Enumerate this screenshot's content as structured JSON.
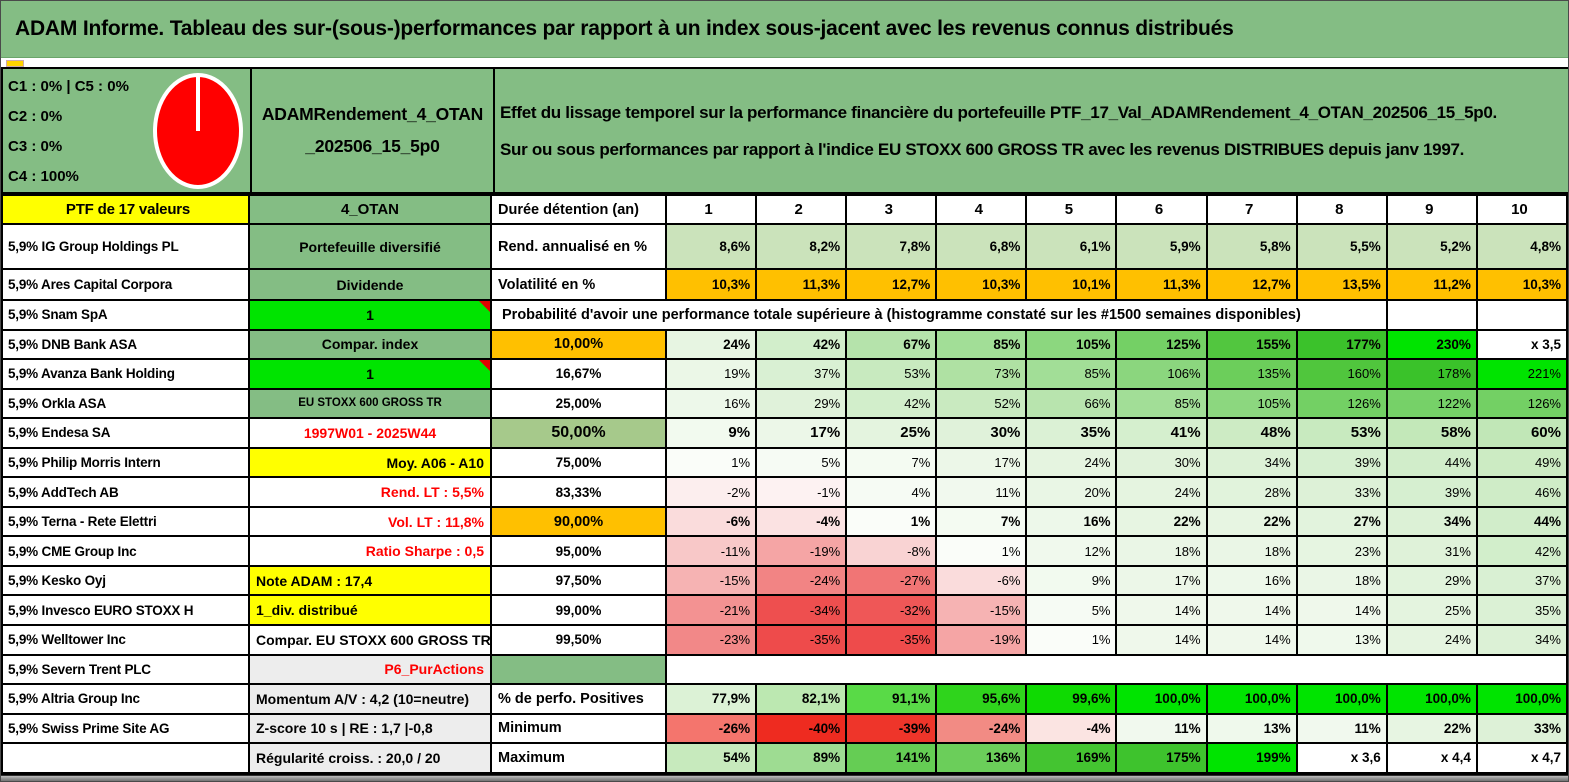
{
  "title": "ADAM Informe. Tableau des sur-(sous-)performances par rapport à un index sous-jacent avec les revenus connus distribués",
  "theme": {
    "banner_green": "#84BD84",
    "bright_green": "#00E400",
    "orange": "#FFC000",
    "yellow": "#FFFF00",
    "sage_green": "#A6C98B",
    "negative_red": "#EE2B20",
    "pie_red": "#FF0000",
    "gray_cell": "#EDEDED"
  },
  "info": {
    "classes": [
      "C1 : 0% | C5 : 0%",
      "C2 : 0%",
      "C3 : 0%",
      "C4 : 100%"
    ],
    "pie": {
      "color": "#FF0000",
      "meaning": "allocation 100% classe C4"
    },
    "name_line1": "ADAMRendement_4_OTAN",
    "name_line2": "_202506_15_5p0",
    "desc_line1": "Effet du lissage temporel sur la performance financière du portefeuille PTF_17_Val_ADAMRendement_4_OTAN_202506_15_5p0.",
    "desc_line2": "Sur ou sous performances par rapport à l'indice EU STOXX 600 GROSS TR avec les revenus DISTRIBUES depuis janv 1997."
  },
  "table": {
    "header": {
      "left": "PTF de 17 valeurs",
      "mid": "4_OTAN",
      "label": "Durée détention (an)"
    },
    "years": [
      "1",
      "2",
      "3",
      "4",
      "5",
      "6",
      "7",
      "8",
      "9",
      "10"
    ],
    "rows": [
      {
        "name": "rend-annualise",
        "left": "5,9% IG Group Holdings PL",
        "mid": {
          "text": "Portefeuille diversifié",
          "cls": "bgg ac"
        },
        "label": {
          "text": "Rend. annualisé en %",
          "cls": "bgw al fs145"
        },
        "vcls": "vb",
        "values": [
          "8,6%",
          "8,2%",
          "7,8%",
          "6,8%",
          "6,1%",
          "5,9%",
          "5,8%",
          "5,5%",
          "5,2%",
          "4,8%"
        ],
        "bgs": [
          "#CBE3BB",
          "#CBE3BB",
          "#CBE3BB",
          "#CBE3BB",
          "#CBE3BB",
          "#CBE3BB",
          "#CBE3BB",
          "#CBE3BB",
          "#CBE3BB",
          "#CBE3BB"
        ]
      },
      {
        "name": "volatilite",
        "left": "5,9% Ares Capital Corpora",
        "mid": {
          "text": "Dividende",
          "cls": "bgg ac"
        },
        "label": {
          "text": "Volatilité en %",
          "cls": "bgw al fs145"
        },
        "vcls": "vb",
        "values": [
          "10,3%",
          "11,3%",
          "12,7%",
          "10,3%",
          "10,1%",
          "11,3%",
          "12,7%",
          "13,5%",
          "11,2%",
          "10,3%"
        ],
        "bgs": [
          "#FFC000",
          "#FFC000",
          "#FFC000",
          "#FFC000",
          "#FFC000",
          "#FFC000",
          "#FFC000",
          "#FFC000",
          "#FFC000",
          "#FFC000"
        ]
      },
      {
        "name": "probabilite-banner",
        "type": "span",
        "left": "5,9% Snam SpA",
        "mid": {
          "text": "1",
          "cls": "bgb ac tri"
        },
        "span_text": "Probabilité d'avoir une performance totale supérieure à (histogramme constaté sur les #1500 semaines disponibles)",
        "trailing_empty": 2
      },
      {
        "name": "p10",
        "left": "5,9% DNB Bank ASA",
        "mid": {
          "text": "Compar. index",
          "cls": "bgg ac"
        },
        "label": {
          "text": "10,00%",
          "cls": "bgo ac fs145"
        },
        "vcls": "vb",
        "values": [
          "24%",
          "42%",
          "67%",
          "85%",
          "105%",
          "125%",
          "155%",
          "177%",
          "230%",
          "x 3,5"
        ],
        "bgs": [
          "#E7F5E2",
          "#D2EECB",
          "#B5E3AB",
          "#A2DE97",
          "#8CD77F",
          "#74D065",
          "#52C63F",
          "#3BC22B",
          "#00E400",
          "#FFFFFF"
        ]
      },
      {
        "name": "p1667",
        "left": "5,9% Avanza Bank Holding",
        "mid": {
          "text": "1",
          "cls": "bgb ac tri"
        },
        "label": {
          "text": "16,67%",
          "cls": "bgw ac"
        },
        "vcls": "",
        "values": [
          "19%",
          "37%",
          "53%",
          "73%",
          "85%",
          "106%",
          "135%",
          "160%",
          "178%",
          "221%"
        ],
        "bgs": [
          "#EBF7E7",
          "#D9F0D3",
          "#C8EABF",
          "#AFE1A3",
          "#A2DE97",
          "#8BD67E",
          "#6CCE5B",
          "#50C63D",
          "#3AC22A",
          "#00E400"
        ]
      },
      {
        "name": "p25",
        "left": "5,9% Orkla ASA",
        "mid": {
          "text": "EU STOXX 600 GROSS TR",
          "cls": "bgg ac fs12"
        },
        "label": {
          "text": "25,00%",
          "cls": "bgw ac"
        },
        "vcls": "",
        "values": [
          "16%",
          "29%",
          "42%",
          "52%",
          "66%",
          "85%",
          "105%",
          "126%",
          "122%",
          "126%"
        ],
        "bgs": [
          "#EDF8EA",
          "#E0F2DA",
          "#D2EECB",
          "#C9EAC0",
          "#B8E4AE",
          "#A2DE97",
          "#8CD77F",
          "#73D064",
          "#76D168",
          "#73D064"
        ]
      },
      {
        "name": "p50",
        "left": "5,9% Endesa SA",
        "mid": {
          "text": "1997W01 - 2025W44",
          "cls": "bgw ac tred"
        },
        "label": {
          "text": "50,00%",
          "cls": "bgs ac fs16"
        },
        "vcls": "vbig",
        "values": [
          "9%",
          "17%",
          "25%",
          "30%",
          "35%",
          "41%",
          "48%",
          "53%",
          "58%",
          "60%"
        ],
        "bgs": [
          "#F2FAEF",
          "#ECF7E8",
          "#E4F4DF",
          "#E0F2DA",
          "#DBF1D5",
          "#D5EFCE",
          "#CDEBC4",
          "#C8EABF",
          "#C3E8B9",
          "#C1E7B7"
        ]
      },
      {
        "name": "p75",
        "left": "5,9% Philip Morris Intern",
        "mid": {
          "text": "Moy. A06 - A10",
          "cls": "bgy ar"
        },
        "label": {
          "text": "75,00%",
          "cls": "bgw ac"
        },
        "vcls": "",
        "values": [
          "1%",
          "5%",
          "7%",
          "17%",
          "24%",
          "30%",
          "34%",
          "39%",
          "44%",
          "49%"
        ],
        "bgs": [
          "#FAFDF9",
          "#F6FBF4",
          "#F4FBF2",
          "#ECF7E8",
          "#E5F4E0",
          "#E0F2DA",
          "#DCF1D6",
          "#D6EFD0",
          "#D1EDCA",
          "#CCEBC3"
        ]
      },
      {
        "name": "p8333",
        "left": "5,9% AddTech AB",
        "mid": {
          "text": "Rend. LT : 5,5%",
          "cls": "bgw ar tred"
        },
        "label": {
          "text": "83,33%",
          "cls": "bgw ac"
        },
        "vcls": "",
        "values": [
          "-2%",
          "-1%",
          "4%",
          "11%",
          "20%",
          "24%",
          "28%",
          "33%",
          "39%",
          "46%"
        ],
        "bgs": [
          "#FCEEEE",
          "#FDF2F2",
          "#F6FBF4",
          "#F1F9EE",
          "#E9F6E5",
          "#E5F4E0",
          "#E1F3DC",
          "#DDF1D7",
          "#D6EFD0",
          "#CFECC7"
        ]
      },
      {
        "name": "p90",
        "left": "5,9% Terna - Rete Elettri",
        "mid": {
          "text": "Vol. LT : 11,8%",
          "cls": "bgw ar tred"
        },
        "label": {
          "text": "90,00%",
          "cls": "bgo ac fs145"
        },
        "vcls": "vb",
        "values": [
          "-6%",
          "-4%",
          "1%",
          "7%",
          "16%",
          "22%",
          "22%",
          "27%",
          "34%",
          "44%"
        ],
        "bgs": [
          "#FADCDC",
          "#FBE2E2",
          "#FAFDF9",
          "#F4FBF2",
          "#EDF8EA",
          "#E7F5E2",
          "#E7F5E2",
          "#E2F3DD",
          "#DCF1D6",
          "#D1EDCA"
        ]
      },
      {
        "name": "p95",
        "left": "5,9% CME Group Inc",
        "mid": {
          "text": "Ratio Sharpe : 0,5",
          "cls": "bgw ar tred"
        },
        "label": {
          "text": "95,00%",
          "cls": "bgw ac"
        },
        "vcls": "",
        "values": [
          "-11%",
          "-19%",
          "-8%",
          "1%",
          "12%",
          "18%",
          "18%",
          "23%",
          "31%",
          "42%"
        ],
        "bgs": [
          "#F8C8C8",
          "#F5A5A5",
          "#F9D3D3",
          "#FAFDF9",
          "#F0F9ED",
          "#EAF6E6",
          "#EAF6E6",
          "#E6F5E1",
          "#DFF2D9",
          "#D2EECB"
        ]
      },
      {
        "name": "p975",
        "left": "5,9% Kesko Oyj",
        "mid": {
          "text": "Note ADAM : 17,4",
          "cls": "bgy al"
        },
        "label": {
          "text": "97,50%",
          "cls": "bgw ac"
        },
        "vcls": "",
        "values": [
          "-15%",
          "-24%",
          "-27%",
          "-6%",
          "9%",
          "17%",
          "16%",
          "18%",
          "29%",
          "37%"
        ],
        "bgs": [
          "#F6B3B3",
          "#F28484",
          "#F17575",
          "#FADCDC",
          "#F2FAEF",
          "#ECF7E8",
          "#EDF8EA",
          "#EAF6E6",
          "#E1F3DC",
          "#D9F0D3"
        ]
      },
      {
        "name": "p99",
        "left": "5,9% Invesco EURO STOXX H",
        "mid": {
          "text": "1_div. distribué",
          "cls": "bgy al"
        },
        "label": {
          "text": "99,00%",
          "cls": "bgw ac"
        },
        "vcls": "",
        "values": [
          "-21%",
          "-34%",
          "-32%",
          "-15%",
          "5%",
          "14%",
          "14%",
          "14%",
          "25%",
          "35%"
        ],
        "bgs": [
          "#F39292",
          "#EE4F4F",
          "#EF5757",
          "#F6B3B3",
          "#F6FBF4",
          "#EFF8EB",
          "#EFF8EB",
          "#EFF8EB",
          "#E4F4DF",
          "#DBF1D5"
        ]
      },
      {
        "name": "p995",
        "left": "5,9% Welltower Inc",
        "mid": {
          "text": "Compar. EU STOXX 600 GROSS TR",
          "cls": "bgw al clip"
        },
        "label": {
          "text": "99,50%",
          "cls": "bgw ac"
        },
        "vcls": "",
        "values": [
          "-23%",
          "-35%",
          "-35%",
          "-19%",
          "1%",
          "14%",
          "14%",
          "13%",
          "24%",
          "34%"
        ],
        "bgs": [
          "#F28888",
          "#EE4B4B",
          "#EE4B4B",
          "#F5A5A5",
          "#FAFDF9",
          "#EFF8EB",
          "#EFF8EB",
          "#EFF9EC",
          "#E5F4E0",
          "#DCF1D6"
        ]
      },
      {
        "name": "p6-puractions",
        "type": "gap",
        "left": "5,9% Severn Trent PLC",
        "mid": {
          "text": "P6_PurActions",
          "cls": "bggr ar tred"
        }
      },
      {
        "name": "perfo-positives",
        "left": "5,9% Altria Group Inc",
        "mid": {
          "text": "Momentum A/V : 4,2 (10=neutre)",
          "cls": "bggr al"
        },
        "label": {
          "text": "% de perfo. Positives",
          "cls": "bgw al fs145"
        },
        "vcls": "vb",
        "values": [
          "77,9%",
          "82,1%",
          "91,1%",
          "95,6%",
          "99,6%",
          "100,0%",
          "100,0%",
          "100,0%",
          "100,0%",
          "100,0%"
        ],
        "bgs": [
          "#DCF2D6",
          "#BCE8B1",
          "#59DA47",
          "#2FD41C",
          "#0FDA02",
          "#00E400",
          "#00E400",
          "#00E400",
          "#00E400",
          "#00E400"
        ]
      },
      {
        "name": "minimum",
        "left": "5,9% Swiss Prime Site AG",
        "mid": {
          "text": "Z-score 10 s | RE : 1,7 |-0,8",
          "cls": "bggr al"
        },
        "label": {
          "text": "Minimum",
          "cls": "bgw al fs145"
        },
        "vcls": "vb",
        "values": [
          "-26%",
          "-40%",
          "-39%",
          "-24%",
          "-4%",
          "11%",
          "13%",
          "11%",
          "22%",
          "33%"
        ],
        "bgs": [
          "#F4756D",
          "#EE2B20",
          "#EE352A",
          "#F28B84",
          "#FBE4E2",
          "#F1F9EE",
          "#EFF9EC",
          "#F1F9EE",
          "#E7F5E2",
          "#DDF1D7"
        ]
      },
      {
        "name": "maximum",
        "left": "",
        "mid": {
          "text": "Régularité croiss. : 20,0 / 20",
          "cls": "bggr al"
        },
        "label": {
          "text": "Maximum",
          "cls": "bgw al fs145"
        },
        "vcls": "vb",
        "values": [
          "54%",
          "89%",
          "141%",
          "136%",
          "169%",
          "175%",
          "199%",
          "x 3,6",
          "x 4,4",
          "x 4,7"
        ],
        "bgs": [
          "#C7EABD",
          "#9EDC92",
          "#65CD54",
          "#6BCE5A",
          "#44C431",
          "#3EC32D",
          "#00E400",
          "#FFFFFF",
          "#FFFFFF",
          "#FFFFFF"
        ]
      }
    ]
  }
}
